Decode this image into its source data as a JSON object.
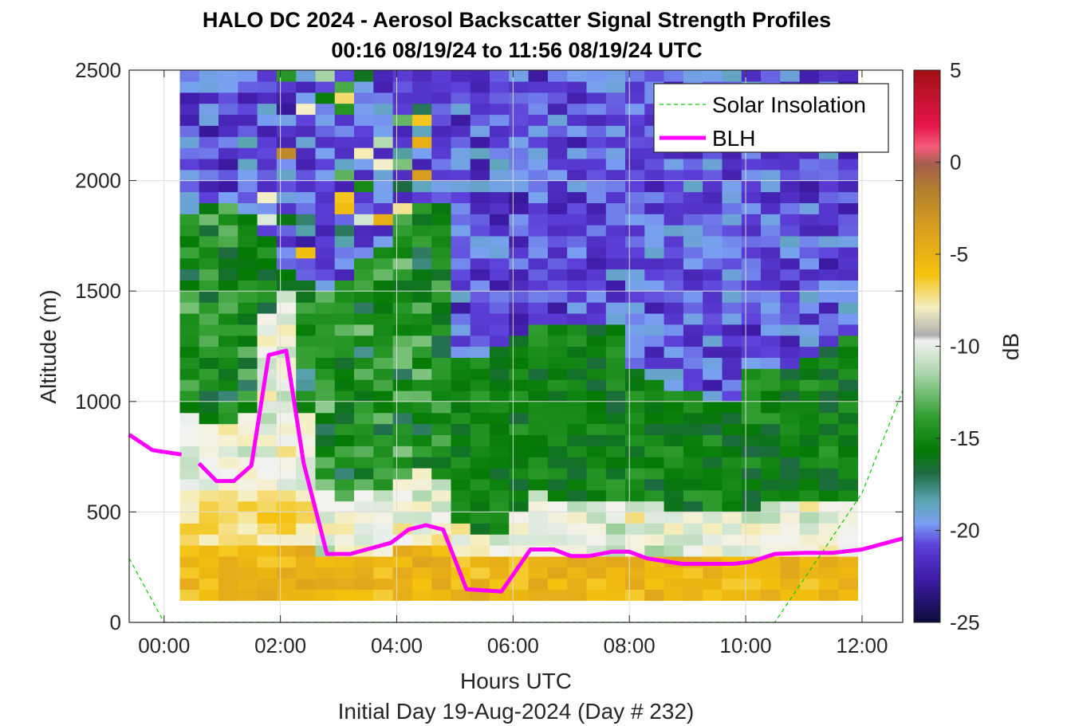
{
  "chart_data": {
    "type": "heatmap",
    "title": "HALO DC 2024 - Aerosol Backscatter Signal Strength Profiles",
    "subtitle": "00:16 08/19/24 to 11:56 08/19/24  UTC",
    "xlabel": "Hours UTC",
    "xlabel2": "Initial Day 19-Aug-2024 (Day # 232)",
    "ylabel": "Altitude (m)",
    "colorbar_label": "dB",
    "xlim": [
      -0.6,
      12.7
    ],
    "ylim": [
      0,
      2500
    ],
    "clim": [
      -25,
      5
    ],
    "x_ticks": [
      0,
      2,
      4,
      6,
      8,
      10,
      12
    ],
    "x_tick_labels": [
      "00:00",
      "02:00",
      "04:00",
      "06:00",
      "08:00",
      "10:00",
      "12:00"
    ],
    "y_ticks": [
      0,
      500,
      1000,
      1500,
      2000,
      2500
    ],
    "y_tick_labels": [
      "0",
      "500",
      "1000",
      "1500",
      "2000",
      "2500"
    ],
    "colorbar_ticks": [
      5,
      0,
      -5,
      -10,
      -15,
      -20,
      -25
    ],
    "colorbar_tick_labels": [
      "5",
      "0",
      "-5",
      "-10",
      "-15",
      "-20",
      "-25"
    ],
    "grid": true,
    "legend_position": "top-right",
    "heatmap": {
      "x_start": 0.27,
      "x_end": 11.93,
      "y_start": 100,
      "y_end": 2500,
      "x_bin": 0.333,
      "y_bin": 50,
      "description_of_values": "dB values approximately -10 to -5 near surface, -15 to -12 mid levels, -22 to -20 aloft"
    },
    "series": [
      {
        "name": "Solar Insolation",
        "style": "dashed",
        "color": "#00cc00",
        "x": [
          -0.6,
          0.0,
          0.5,
          1.0,
          2.0,
          4.0,
          6.0,
          8.0,
          10.0,
          10.5,
          11.0,
          11.5,
          12.0,
          12.7
        ],
        "y": [
          290,
          0,
          0,
          0,
          0,
          0,
          0,
          0,
          0,
          0,
          195,
          390,
          585,
          1050
        ]
      },
      {
        "name": "BLH",
        "style": "solid",
        "color": "#ff00ff",
        "segments": [
          {
            "x": [
              -0.6,
              -0.2,
              0.3
            ],
            "y": [
              850,
              780,
              760
            ]
          },
          {
            "x": [
              0.6,
              0.9,
              1.2,
              1.5,
              1.8,
              2.1,
              2.4,
              2.8,
              3.2,
              3.9,
              4.2,
              4.5,
              4.8,
              5.2,
              5.8,
              6.3,
              6.7,
              7.0,
              7.3,
              7.7,
              8.0,
              8.3,
              8.9,
              9.3,
              9.8,
              10.1,
              10.5,
              11.0,
              11.5,
              12.0,
              12.7
            ],
            "y": [
              720,
              640,
              640,
              710,
              1210,
              1230,
              720,
              310,
              310,
              360,
              420,
              440,
              420,
              150,
              140,
              330,
              330,
              300,
              300,
              320,
              320,
              290,
              265,
              265,
              265,
              275,
              310,
              315,
              315,
              330,
              380
            ]
          }
        ]
      }
    ],
    "legend": [
      {
        "label": "Solar Insolation",
        "style": "dashed",
        "color": "#00cc00"
      },
      {
        "label": "BLH",
        "style": "solid",
        "color": "#ff00ff"
      }
    ]
  }
}
